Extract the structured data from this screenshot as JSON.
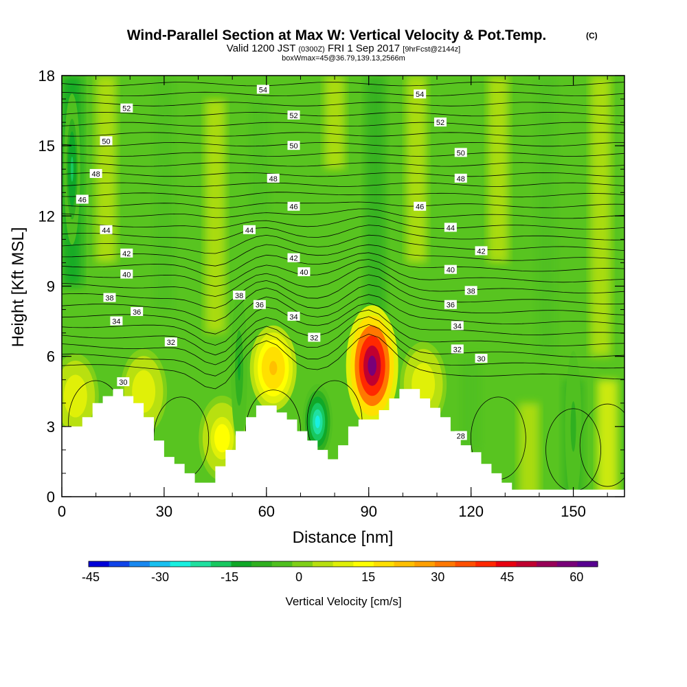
{
  "header": {
    "title": "Wind-Parallel Section at Max W: Vertical Velocity & Pot.Temp.",
    "title_tag": "(C)",
    "valid_prefix": "Valid 1200 JST",
    "valid_utc": "(0300Z)",
    "valid_day": "FRI 1 Sep 2017",
    "valid_fcst": "[9hrFcst@2144z]",
    "boxline": "boxWmax=45@36.79,139.13,2566m"
  },
  "chart_data": {
    "type": "heatmap",
    "xlabel": "Distance [nm]",
    "ylabel": "Height [Kft MSL]",
    "xlim": [
      0,
      165
    ],
    "ylim": [
      0,
      18
    ],
    "x_ticks": [
      "0",
      "30",
      "60",
      "90",
      "120",
      "150"
    ],
    "y_ticks": [
      "0",
      "3",
      "6",
      "9",
      "12",
      "15",
      "18"
    ],
    "background_w_cms": 0,
    "updraft_cores": [
      {
        "x": 91,
        "y": 5.6,
        "w_max": 60
      },
      {
        "x": 62,
        "y": 5.5,
        "w_max": 25
      },
      {
        "x": 47,
        "y": 2.5,
        "w_max": 15
      },
      {
        "x": 4,
        "y": 4.3,
        "w_max": 12
      },
      {
        "x": 24,
        "y": 4.5,
        "w_max": 12
      },
      {
        "x": 106,
        "y": 4.8,
        "w_max": 12
      }
    ],
    "downdraft_cores": [
      {
        "x": 75,
        "y": 3.2,
        "w_min": -25
      },
      {
        "x": 52,
        "y": 5.5,
        "w_min": -10
      },
      {
        "x": 3,
        "y": 14,
        "w_min": -15
      },
      {
        "x": 150,
        "y": 3,
        "w_min": -8
      }
    ],
    "theta_contour_labels": [
      {
        "text": "54",
        "x": 59,
        "y": 17.4
      },
      {
        "text": "54",
        "x": 105,
        "y": 17.2
      },
      {
        "text": "52",
        "x": 19,
        "y": 16.6
      },
      {
        "text": "52",
        "x": 68,
        "y": 16.3
      },
      {
        "text": "52",
        "x": 111,
        "y": 16
      },
      {
        "text": "50",
        "x": 13,
        "y": 15.2
      },
      {
        "text": "50",
        "x": 68,
        "y": 15
      },
      {
        "text": "50",
        "x": 117,
        "y": 14.7
      },
      {
        "text": "48",
        "x": 10,
        "y": 13.8
      },
      {
        "text": "48",
        "x": 62,
        "y": 13.6
      },
      {
        "text": "48",
        "x": 117,
        "y": 13.6
      },
      {
        "text": "46",
        "x": 6,
        "y": 12.7
      },
      {
        "text": "46",
        "x": 68,
        "y": 12.4
      },
      {
        "text": "46",
        "x": 105,
        "y": 12.4
      },
      {
        "text": "44",
        "x": 13,
        "y": 11.4
      },
      {
        "text": "44",
        "x": 55,
        "y": 11.4
      },
      {
        "text": "44",
        "x": 114,
        "y": 11.5
      },
      {
        "text": "42",
        "x": 19,
        "y": 10.4
      },
      {
        "text": "42",
        "x": 68,
        "y": 10.2
      },
      {
        "text": "42",
        "x": 123,
        "y": 10.5
      },
      {
        "text": "40",
        "x": 19,
        "y": 9.5
      },
      {
        "text": "40",
        "x": 71,
        "y": 9.6
      },
      {
        "text": "40",
        "x": 114,
        "y": 9.7
      },
      {
        "text": "38",
        "x": 14,
        "y": 8.5
      },
      {
        "text": "38",
        "x": 52,
        "y": 8.6
      },
      {
        "text": "38",
        "x": 120,
        "y": 8.8
      },
      {
        "text": "36",
        "x": 22,
        "y": 7.9
      },
      {
        "text": "36",
        "x": 58,
        "y": 8.2
      },
      {
        "text": "36",
        "x": 114,
        "y": 8.2
      },
      {
        "text": "34",
        "x": 16,
        "y": 7.5
      },
      {
        "text": "34",
        "x": 68,
        "y": 7.7
      },
      {
        "text": "34",
        "x": 116,
        "y": 7.3
      },
      {
        "text": "32",
        "x": 32,
        "y": 6.6
      },
      {
        "text": "32",
        "x": 74,
        "y": 6.8
      },
      {
        "text": "32",
        "x": 116,
        "y": 6.3
      },
      {
        "text": "30",
        "x": 18,
        "y": 4.9
      },
      {
        "text": "30",
        "x": 123,
        "y": 5.9
      },
      {
        "text": "28",
        "x": 117,
        "y": 2.6
      }
    ],
    "terrain_kft": [
      [
        0,
        3.0
      ],
      [
        6,
        3.0
      ],
      [
        6,
        3.4
      ],
      [
        9,
        3.4
      ],
      [
        9,
        4.0
      ],
      [
        12,
        4.0
      ],
      [
        12,
        4.3
      ],
      [
        15,
        4.3
      ],
      [
        15,
        4.6
      ],
      [
        18,
        4.6
      ],
      [
        18,
        4.3
      ],
      [
        21,
        4.3
      ],
      [
        21,
        4.0
      ],
      [
        24,
        4.0
      ],
      [
        24,
        3.4
      ],
      [
        27,
        3.4
      ],
      [
        27,
        2.4
      ],
      [
        30,
        2.4
      ],
      [
        30,
        1.7
      ],
      [
        33,
        1.7
      ],
      [
        33,
        1.4
      ],
      [
        36,
        1.4
      ],
      [
        36,
        1.0
      ],
      [
        39,
        1.0
      ],
      [
        39,
        0.6
      ],
      [
        45,
        0.6
      ],
      [
        45,
        1.3
      ],
      [
        48,
        1.3
      ],
      [
        48,
        2.0
      ],
      [
        51,
        2.0
      ],
      [
        51,
        2.8
      ],
      [
        54,
        2.8
      ],
      [
        54,
        3.4
      ],
      [
        57,
        3.4
      ],
      [
        57,
        3.9
      ],
      [
        63,
        3.9
      ],
      [
        63,
        3.6
      ],
      [
        66,
        3.6
      ],
      [
        66,
        3.3
      ],
      [
        69,
        3.3
      ],
      [
        69,
        2.8
      ],
      [
        72,
        2.8
      ],
      [
        72,
        2.4
      ],
      [
        75,
        2.4
      ],
      [
        75,
        2.0
      ],
      [
        78,
        2.0
      ],
      [
        78,
        1.6
      ],
      [
        81,
        1.6
      ],
      [
        81,
        2.2
      ],
      [
        84,
        2.2
      ],
      [
        84,
        3.0
      ],
      [
        87,
        3.0
      ],
      [
        87,
        3.3
      ],
      [
        93,
        3.3
      ],
      [
        93,
        3.7
      ],
      [
        96,
        3.7
      ],
      [
        96,
        4.2
      ],
      [
        99,
        4.2
      ],
      [
        99,
        4.6
      ],
      [
        105,
        4.6
      ],
      [
        105,
        4.2
      ],
      [
        108,
        4.2
      ],
      [
        108,
        3.8
      ],
      [
        111,
        3.8
      ],
      [
        111,
        3.4
      ],
      [
        114,
        3.4
      ],
      [
        114,
        2.8
      ],
      [
        117,
        2.8
      ],
      [
        117,
        2.2
      ],
      [
        120,
        2.2
      ],
      [
        120,
        1.9
      ],
      [
        123,
        1.9
      ],
      [
        123,
        1.4
      ],
      [
        126,
        1.4
      ],
      [
        126,
        1.0
      ],
      [
        129,
        1.0
      ],
      [
        129,
        0.6
      ],
      [
        132,
        0.6
      ],
      [
        132,
        0.3
      ],
      [
        165,
        0.3
      ]
    ]
  },
  "colorbar": {
    "label": "Vertical Velocity [cm/s]",
    "tick_labels": [
      "-45",
      "-30",
      "-15",
      "0",
      "15",
      "30",
      "45",
      "60"
    ],
    "colors": [
      "#0000d8",
      "#1044e8",
      "#1888f0",
      "#18c0f0",
      "#18f0e0",
      "#20e0a0",
      "#18c860",
      "#10a828",
      "#30b020",
      "#50c020",
      "#80d018",
      "#b8e010",
      "#e0f008",
      "#ffff00",
      "#ffe000",
      "#ffc000",
      "#ffa000",
      "#ff7800",
      "#ff5000",
      "#ff2800",
      "#e80010",
      "#c00030",
      "#980058",
      "#780078",
      "#580090"
    ]
  }
}
